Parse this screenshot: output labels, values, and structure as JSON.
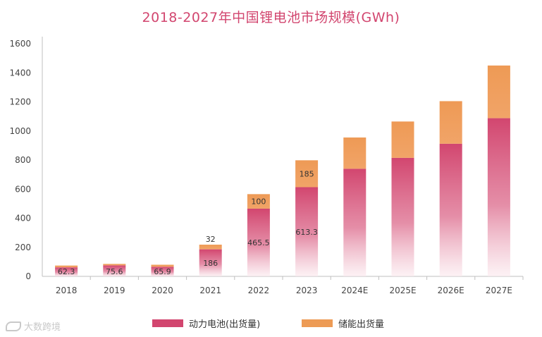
{
  "chart_data": {
    "type": "bar",
    "stacked": true,
    "title": "2018-2027年中国锂电池市场规模(GWh)",
    "xlabel": "",
    "ylabel": "",
    "ylim": [
      0,
      1600
    ],
    "yticks": [
      0,
      200,
      400,
      600,
      800,
      1000,
      1200,
      1400,
      1600
    ],
    "grid": false,
    "legend_position": "bottom",
    "categories": [
      "2018",
      "2019",
      "2020",
      "2021",
      "2022",
      "2023",
      "2024E",
      "2025E",
      "2026E",
      "2027E"
    ],
    "series": [
      {
        "name": "动力电池(出货量)",
        "color": "#d2466f",
        "values": [
          62.3,
          75.6,
          65.9,
          186,
          465.5,
          613.3,
          740,
          815,
          912,
          1088
        ],
        "labels": [
          "62.3",
          "75.6",
          "65.9",
          "186",
          "465.5",
          "613.3",
          "",
          "",
          "",
          ""
        ]
      },
      {
        "name": "储能出货量",
        "color": "#ed9b55",
        "values": [
          12,
          10,
          14,
          32,
          100,
          185,
          215,
          250,
          293,
          362
        ],
        "labels": [
          "",
          "",
          "",
          "32",
          "100",
          "185",
          "",
          "",
          "",
          ""
        ]
      }
    ]
  },
  "watermark": "大数跨境"
}
